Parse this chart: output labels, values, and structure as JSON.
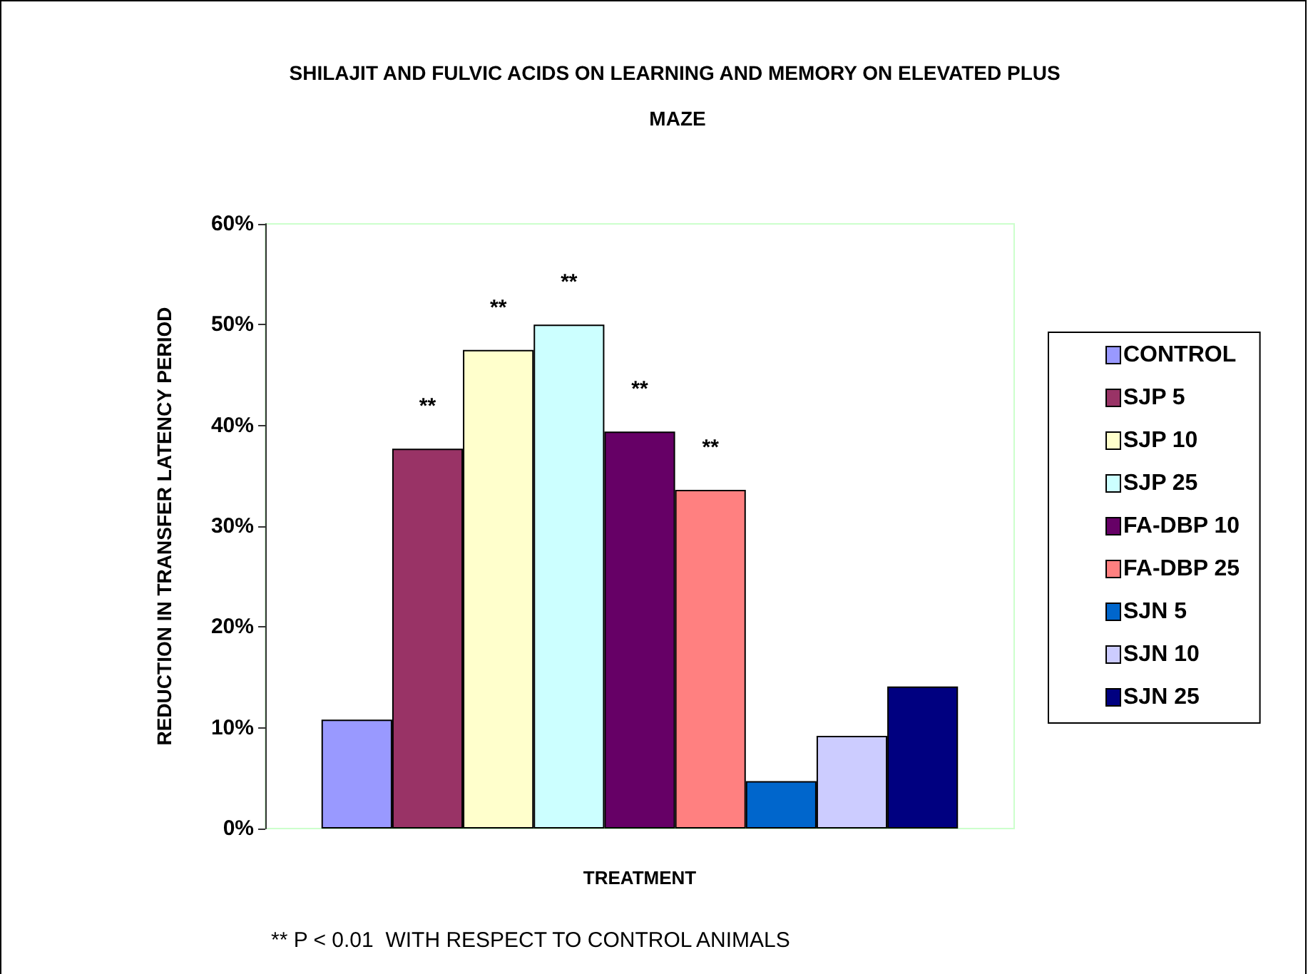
{
  "chart_data": {
    "type": "bar",
    "title": "SHILAJIT AND FULVIC ACIDS ON LEARNING AND MEMORY ON ELEVATED PLUS MAZE",
    "xlabel": "TREATMENT",
    "ylabel": "REDUCTION IN TRANSFER LATENCY PERIOD",
    "categories": [
      null
    ],
    "series": [
      {
        "name": "CONTROL",
        "color": "#9999ff",
        "values": [
          10.8
        ]
      },
      {
        "name": "SJP 5",
        "color": "#993366",
        "values": [
          37.7
        ],
        "value_labels": [
          "**"
        ]
      },
      {
        "name": "SJP 10",
        "color": "#ffffcc",
        "values": [
          47.5
        ],
        "value_labels": [
          "**"
        ]
      },
      {
        "name": "SJP 25",
        "color": "#ccffff",
        "values": [
          50.0
        ],
        "value_labels": [
          "**"
        ]
      },
      {
        "name": "FA-DBP 10",
        "color": "#660066",
        "values": [
          39.4
        ],
        "value_labels": [
          "**"
        ]
      },
      {
        "name": "FA-DBP 25",
        "color": "#ff8080",
        "values": [
          33.6
        ],
        "value_labels": [
          "**"
        ]
      },
      {
        "name": "SJN 5",
        "color": "#0066cc",
        "values": [
          4.7
        ]
      },
      {
        "name": "SJN 10",
        "color": "#ccccff",
        "values": [
          9.2
        ]
      },
      {
        "name": "SJN 25",
        "color": "#000080",
        "values": [
          14.1
        ]
      }
    ],
    "ylim": [
      0,
      60
    ],
    "yticks": [
      {
        "value": 0,
        "label": "0%"
      },
      {
        "value": 10,
        "label": "10%"
      },
      {
        "value": 20,
        "label": "20%"
      },
      {
        "value": 30,
        "label": "30%"
      },
      {
        "value": 40,
        "label": "40%"
      },
      {
        "value": 50,
        "label": "50%"
      },
      {
        "value": 60,
        "label": "60%"
      }
    ],
    "annotations": [
      "** P < 0.01  WITH RESPECT TO CONTROL ANIMALS"
    ],
    "legend": "right",
    "grid": false
  }
}
